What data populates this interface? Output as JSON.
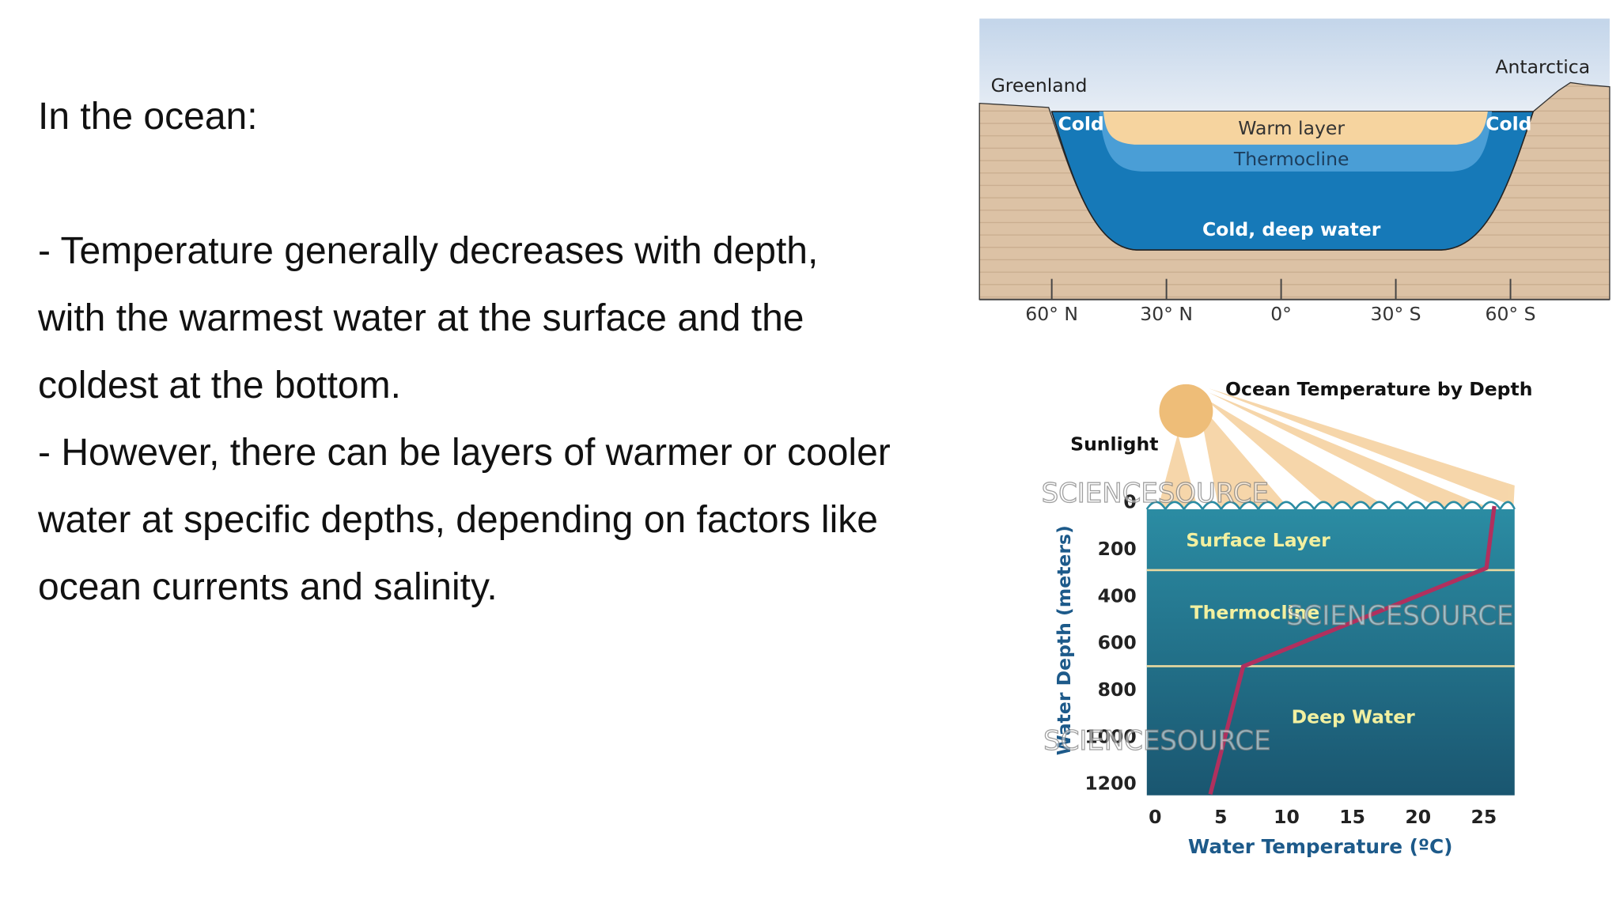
{
  "slide": {
    "heading": "In the ocean:",
    "bullets": [
      "- Temperature generally decreases with depth, with the warmest water at the surface and the coldest at the bottom.",
      "- However, there can be layers of warmer or cooler water at specific depths, depending on factors like ocean currents and salinity."
    ]
  },
  "figure_top": {
    "greenland": "Greenland",
    "antarctica": "Antarctica",
    "cold_left": "Cold",
    "cold_right": "Cold",
    "warm_layer": "Warm layer",
    "thermocline": "Thermocline",
    "deep_water": "Cold, deep water",
    "latitudes": [
      "60° N",
      "30° N",
      "0°",
      "30° S",
      "60° S"
    ]
  },
  "chart_data": {
    "type": "line",
    "title": "Ocean Temperature by Depth",
    "x_label": "Water Temperature (ºC)",
    "y_label": "Water Depth (meters)",
    "annotations": {
      "sunlight": "Sunlight",
      "surface_layer": "Surface Layer",
      "thermocline": "Thermocline",
      "deep_water": "Deep Water"
    },
    "watermarks": [
      "SCIENCESOURCE",
      "SCIENCESOURCE",
      "SCIENCESOURCE"
    ],
    "x": [
      25.8,
      25.2,
      6.7,
      4.2
    ],
    "values": [
      22,
      286,
      705,
      1250
    ],
    "color": "#b0305e",
    "xlim": [
      0,
      27.5
    ],
    "xticks": [
      0,
      5,
      10,
      15,
      20,
      25
    ],
    "ylim": [
      0,
      1250
    ],
    "yticks": [
      0,
      200,
      400,
      600,
      800,
      1000,
      1200
    ],
    "y_inverted": true
  }
}
